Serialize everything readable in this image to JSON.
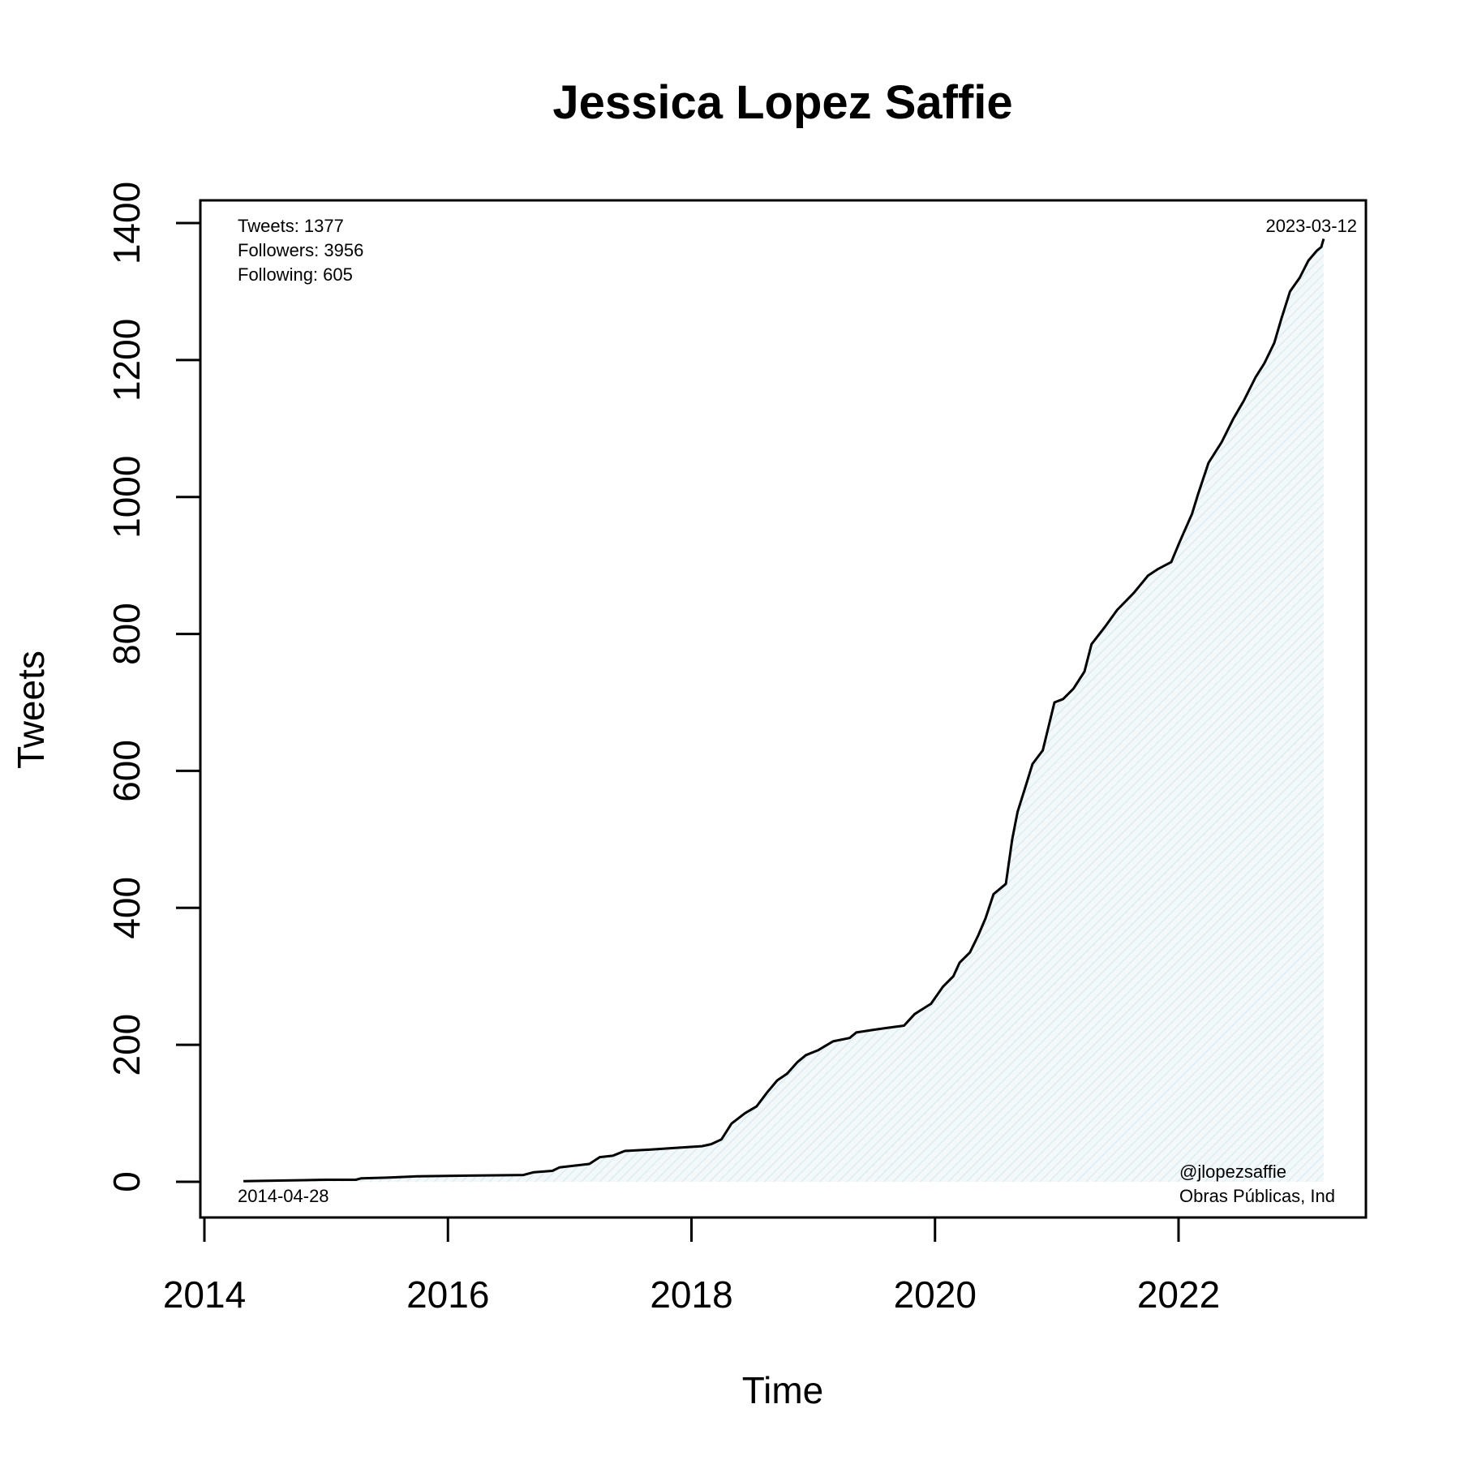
{
  "chart_data": {
    "type": "area",
    "title": "Jessica Lopez Saffie",
    "xlabel": "Time",
    "ylabel": "Tweets",
    "xlim": [
      "2014-01-01",
      "2023-06-01"
    ],
    "ylim": [
      0,
      1400
    ],
    "x_ticks": [
      "2014",
      "2016",
      "2018",
      "2020",
      "2022"
    ],
    "y_ticks": [
      "0",
      "200",
      "400",
      "600",
      "800",
      "1000",
      "1200",
      "1400"
    ],
    "grid": false,
    "fill_color": "#eaf4f7",
    "line_color": "#000000",
    "stats": {
      "tweets": "Tweets: 1377",
      "followers": "Followers: 3956",
      "following": "Following: 605"
    },
    "start_label": "2014-04-28",
    "end_label": "2023-03-12",
    "handle": "@jlopezsaffie",
    "affiliation": "Obras Públicas, Ind",
    "points": [
      [
        "2014-04-28",
        1
      ],
      [
        "2014-12-31",
        3
      ],
      [
        "2015-03-31",
        3
      ],
      [
        "2015-04-15",
        5
      ],
      [
        "2015-07-01",
        6
      ],
      [
        "2015-10-01",
        8
      ],
      [
        "2016-03-01",
        9
      ],
      [
        "2016-08-15",
        10
      ],
      [
        "2016-09-15",
        14
      ],
      [
        "2016-11-10",
        16
      ],
      [
        "2016-12-01",
        21
      ],
      [
        "2017-03-01",
        26
      ],
      [
        "2017-04-01",
        36
      ],
      [
        "2017-05-10",
        38
      ],
      [
        "2017-06-15",
        45
      ],
      [
        "2017-09-01",
        47
      ],
      [
        "2017-12-01",
        50
      ],
      [
        "2018-02-01",
        52
      ],
      [
        "2018-03-01",
        55
      ],
      [
        "2018-04-01",
        62
      ],
      [
        "2018-05-01",
        85
      ],
      [
        "2018-06-10",
        100
      ],
      [
        "2018-07-15",
        110
      ],
      [
        "2018-08-15",
        130
      ],
      [
        "2018-09-15",
        148
      ],
      [
        "2018-10-15",
        158
      ],
      [
        "2018-11-15",
        175
      ],
      [
        "2018-12-10",
        185
      ],
      [
        "2019-01-15",
        192
      ],
      [
        "2019-03-01",
        205
      ],
      [
        "2019-04-20",
        210
      ],
      [
        "2019-05-10",
        218
      ],
      [
        "2019-07-01",
        222
      ],
      [
        "2019-08-15",
        225
      ],
      [
        "2019-09-30",
        228
      ],
      [
        "2019-11-01",
        245
      ],
      [
        "2019-12-20",
        260
      ],
      [
        "2020-01-25",
        285
      ],
      [
        "2020-02-25",
        300
      ],
      [
        "2020-03-15",
        320
      ],
      [
        "2020-04-15",
        335
      ],
      [
        "2020-05-10",
        360
      ],
      [
        "2020-06-01",
        385
      ],
      [
        "2020-06-25",
        420
      ],
      [
        "2020-08-01",
        435
      ],
      [
        "2020-08-20",
        500
      ],
      [
        "2020-09-05",
        540
      ],
      [
        "2020-10-01",
        580
      ],
      [
        "2020-10-20",
        610
      ],
      [
        "2020-11-20",
        630
      ],
      [
        "2020-12-25",
        700
      ],
      [
        "2021-01-20",
        705
      ],
      [
        "2021-02-20",
        720
      ],
      [
        "2021-03-25",
        745
      ],
      [
        "2021-04-15",
        785
      ],
      [
        "2021-05-25",
        810
      ],
      [
        "2021-07-01",
        835
      ],
      [
        "2021-08-20",
        860
      ],
      [
        "2021-10-01",
        885
      ],
      [
        "2021-11-01",
        895
      ],
      [
        "2021-12-10",
        905
      ],
      [
        "2022-01-05",
        935
      ],
      [
        "2022-02-10",
        975
      ],
      [
        "2022-03-01",
        1005
      ],
      [
        "2022-04-01",
        1050
      ],
      [
        "2022-05-10",
        1080
      ],
      [
        "2022-06-15",
        1115
      ],
      [
        "2022-07-15",
        1140
      ],
      [
        "2022-08-20",
        1175
      ],
      [
        "2022-09-15",
        1195
      ],
      [
        "2022-10-15",
        1225
      ],
      [
        "2022-11-05",
        1260
      ],
      [
        "2022-12-01",
        1300
      ],
      [
        "2022-12-30",
        1320
      ],
      [
        "2023-01-25",
        1345
      ],
      [
        "2023-02-20",
        1360
      ],
      [
        "2023-03-05",
        1365
      ],
      [
        "2023-03-12",
        1377
      ]
    ]
  }
}
